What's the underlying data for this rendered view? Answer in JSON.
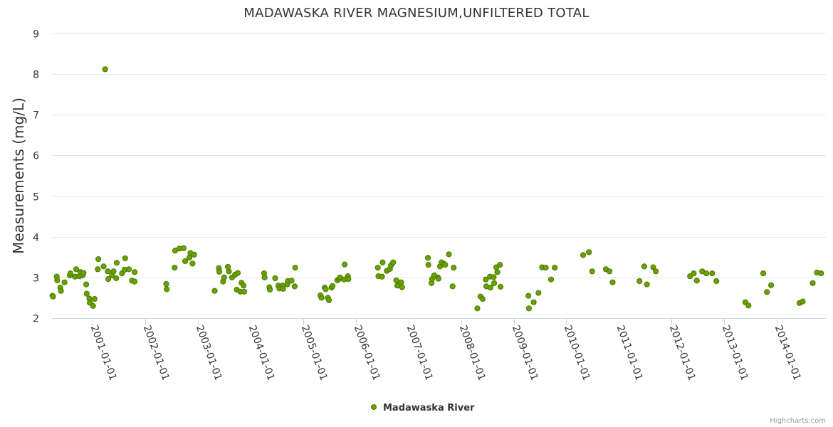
{
  "chart_data": {
    "type": "scatter",
    "title": "MADAWASKA RIVER MAGNESIUM,UNFILTERED TOTAL",
    "xlabel": "",
    "ylabel": "Measurements (mg/L)",
    "ylim": [
      2,
      9
    ],
    "yticks": [
      "2",
      "3",
      "4",
      "5",
      "6",
      "7",
      "8",
      "9"
    ],
    "xlim": [
      2000.23,
      2014.93
    ],
    "xticks": [
      {
        "label": "2001-01-01",
        "value": 2001
      },
      {
        "label": "2002-01-01",
        "value": 2002
      },
      {
        "label": "2003-01-01",
        "value": 2003
      },
      {
        "label": "2004-01-01",
        "value": 2004
      },
      {
        "label": "2005-01-01",
        "value": 2005
      },
      {
        "label": "2006-01-01",
        "value": 2006
      },
      {
        "label": "2007-01-01",
        "value": 2007
      },
      {
        "label": "2008-01-01",
        "value": 2008
      },
      {
        "label": "2009-01-01",
        "value": 2009
      },
      {
        "label": "2010-01-01",
        "value": 2010
      },
      {
        "label": "2011-01-01",
        "value": 2011
      },
      {
        "label": "2012-01-01",
        "value": 2012
      },
      {
        "label": "2013-01-01",
        "value": 2013
      },
      {
        "label": "2014-01-01",
        "value": 2014
      }
    ],
    "legend": "bottom-center",
    "series": [
      {
        "name": "Madawaska River",
        "color": "#6aa000",
        "points": [
          [
            2000.24,
            2.55
          ],
          [
            2000.25,
            2.53
          ],
          [
            2000.32,
            3.02
          ],
          [
            2000.33,
            2.93
          ],
          [
            2000.39,
            2.75
          ],
          [
            2000.4,
            2.67
          ],
          [
            2000.47,
            2.88
          ],
          [
            2000.57,
            3.05
          ],
          [
            2000.58,
            3.1
          ],
          [
            2000.67,
            3.02
          ],
          [
            2000.69,
            3.2
          ],
          [
            2000.75,
            3.03
          ],
          [
            2000.77,
            3.13
          ],
          [
            2000.81,
            3.05
          ],
          [
            2000.83,
            3.11
          ],
          [
            2000.88,
            2.83
          ],
          [
            2000.89,
            2.6
          ],
          [
            2000.94,
            2.48
          ],
          [
            2000.95,
            2.38
          ],
          [
            2001.01,
            2.3
          ],
          [
            2001.04,
            2.47
          ],
          [
            2001.1,
            3.2
          ],
          [
            2001.11,
            3.45
          ],
          [
            2001.21,
            3.27
          ],
          [
            2001.24,
            8.12
          ],
          [
            2001.29,
            3.15
          ],
          [
            2001.3,
            2.96
          ],
          [
            2001.37,
            3.05
          ],
          [
            2001.4,
            3.15
          ],
          [
            2001.45,
            2.98
          ],
          [
            2001.46,
            3.36
          ],
          [
            2001.56,
            3.1
          ],
          [
            2001.61,
            3.19
          ],
          [
            2001.62,
            3.47
          ],
          [
            2001.69,
            3.2
          ],
          [
            2001.75,
            2.92
          ],
          [
            2001.8,
            2.9
          ],
          [
            2001.8,
            3.13
          ],
          [
            2002.4,
            2.84
          ],
          [
            2002.41,
            2.71
          ],
          [
            2002.56,
            3.24
          ],
          [
            2002.57,
            3.66
          ],
          [
            2002.65,
            3.71
          ],
          [
            2002.73,
            3.72
          ],
          [
            2002.76,
            3.4
          ],
          [
            2002.84,
            3.49
          ],
          [
            2002.86,
            3.6
          ],
          [
            2002.9,
            3.34
          ],
          [
            2002.93,
            3.56
          ],
          [
            2003.32,
            2.67
          ],
          [
            2003.4,
            3.23
          ],
          [
            2003.41,
            3.14
          ],
          [
            2003.48,
            2.9
          ],
          [
            2003.5,
            3.0
          ],
          [
            2003.57,
            3.26
          ],
          [
            2003.59,
            3.15
          ],
          [
            2003.65,
            3.0
          ],
          [
            2003.71,
            3.07
          ],
          [
            2003.74,
            2.7
          ],
          [
            2003.76,
            3.11
          ],
          [
            2003.81,
            2.65
          ],
          [
            2003.83,
            2.87
          ],
          [
            2003.87,
            2.8
          ],
          [
            2003.88,
            2.65
          ],
          [
            2004.26,
            3.1
          ],
          [
            2004.27,
            3.0
          ],
          [
            2004.36,
            2.76
          ],
          [
            2004.37,
            2.7
          ],
          [
            2004.47,
            2.98
          ],
          [
            2004.53,
            2.8
          ],
          [
            2004.55,
            2.73
          ],
          [
            2004.61,
            2.8
          ],
          [
            2004.62,
            2.72
          ],
          [
            2004.7,
            2.83
          ],
          [
            2004.71,
            2.91
          ],
          [
            2004.78,
            2.92
          ],
          [
            2004.84,
            2.78
          ],
          [
            2004.85,
            3.24
          ],
          [
            2005.33,
            2.56
          ],
          [
            2005.35,
            2.5
          ],
          [
            2005.41,
            2.75
          ],
          [
            2005.43,
            2.71
          ],
          [
            2005.47,
            2.5
          ],
          [
            2005.49,
            2.44
          ],
          [
            2005.54,
            2.75
          ],
          [
            2005.56,
            2.79
          ],
          [
            2005.65,
            2.93
          ],
          [
            2005.68,
            2.96
          ],
          [
            2005.7,
            3.0
          ],
          [
            2005.78,
            2.95
          ],
          [
            2005.79,
            3.32
          ],
          [
            2005.85,
            3.03
          ],
          [
            2005.86,
            2.96
          ],
          [
            2006.42,
            3.24
          ],
          [
            2006.43,
            3.03
          ],
          [
            2006.5,
            3.02
          ],
          [
            2006.51,
            3.37
          ],
          [
            2006.59,
            3.16
          ],
          [
            2006.65,
            3.21
          ],
          [
            2006.67,
            3.3
          ],
          [
            2006.71,
            3.37
          ],
          [
            2006.77,
            2.93
          ],
          [
            2006.79,
            2.8
          ],
          [
            2006.86,
            2.88
          ],
          [
            2006.88,
            2.76
          ],
          [
            2007.37,
            3.48
          ],
          [
            2007.38,
            3.31
          ],
          [
            2007.44,
            2.86
          ],
          [
            2007.45,
            2.96
          ],
          [
            2007.49,
            3.05
          ],
          [
            2007.56,
            3.0
          ],
          [
            2007.57,
            2.97
          ],
          [
            2007.6,
            3.27
          ],
          [
            2007.63,
            3.37
          ],
          [
            2007.68,
            3.33
          ],
          [
            2007.7,
            3.31
          ],
          [
            2007.77,
            3.57
          ],
          [
            2007.84,
            2.78
          ],
          [
            2007.86,
            3.24
          ],
          [
            2008.31,
            2.24
          ],
          [
            2008.37,
            2.53
          ],
          [
            2008.41,
            2.47
          ],
          [
            2008.47,
            2.95
          ],
          [
            2008.48,
            2.78
          ],
          [
            2008.55,
            3.02
          ],
          [
            2008.56,
            2.75
          ],
          [
            2008.62,
            3.01
          ],
          [
            2008.63,
            2.86
          ],
          [
            2008.67,
            3.25
          ],
          [
            2008.69,
            3.13
          ],
          [
            2008.74,
            3.31
          ],
          [
            2008.75,
            2.77
          ],
          [
            2009.28,
            2.55
          ],
          [
            2009.29,
            2.24
          ],
          [
            2009.38,
            2.39
          ],
          [
            2009.47,
            2.62
          ],
          [
            2009.54,
            3.25
          ],
          [
            2009.61,
            3.24
          ],
          [
            2009.71,
            2.95
          ],
          [
            2009.78,
            3.24
          ],
          [
            2010.32,
            3.55
          ],
          [
            2010.43,
            3.62
          ],
          [
            2010.49,
            3.15
          ],
          [
            2010.75,
            3.2
          ],
          [
            2010.82,
            3.15
          ],
          [
            2010.88,
            2.88
          ],
          [
            2011.39,
            2.91
          ],
          [
            2011.48,
            3.27
          ],
          [
            2011.53,
            2.83
          ],
          [
            2011.65,
            3.25
          ],
          [
            2011.7,
            3.15
          ],
          [
            2012.35,
            3.03
          ],
          [
            2012.42,
            3.1
          ],
          [
            2012.48,
            2.92
          ],
          [
            2012.58,
            3.15
          ],
          [
            2012.66,
            3.1
          ],
          [
            2012.77,
            3.1
          ],
          [
            2012.85,
            2.91
          ],
          [
            2013.4,
            2.39
          ],
          [
            2013.46,
            2.31
          ],
          [
            2013.74,
            3.1
          ],
          [
            2013.81,
            2.64
          ],
          [
            2013.89,
            2.81
          ],
          [
            2014.43,
            2.37
          ],
          [
            2014.49,
            2.41
          ],
          [
            2014.68,
            2.86
          ],
          [
            2014.76,
            3.12
          ],
          [
            2014.84,
            3.1
          ]
        ]
      }
    ]
  },
  "credits": "Highcharts.com"
}
